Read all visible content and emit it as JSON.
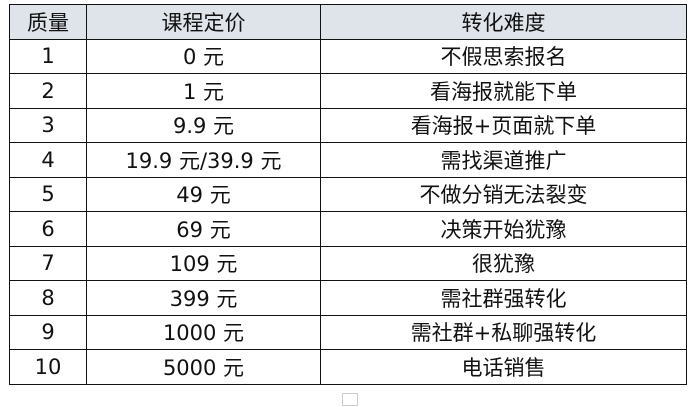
{
  "table": {
    "headers": [
      "质量",
      "课程定价",
      "转化难度"
    ],
    "rows": [
      [
        "1",
        "0 元",
        "不假思索报名"
      ],
      [
        "2",
        "1 元",
        "看海报就能下单"
      ],
      [
        "3",
        "9.9 元",
        "看海报+页面就下单"
      ],
      [
        "4",
        "19.9 元/39.9 元",
        "需找渠道推广"
      ],
      [
        "5",
        "49 元",
        "不做分销无法裂变"
      ],
      [
        "6",
        "69 元",
        "决策开始犹豫"
      ],
      [
        "7",
        "109 元",
        "很犹豫"
      ],
      [
        "8",
        "399 元",
        "需社群强转化"
      ],
      [
        "9",
        "1000 元",
        "需社群+私聊强转化"
      ],
      [
        "10",
        "5000 元",
        "电话销售"
      ]
    ]
  },
  "colors": {
    "header_bg": "#dfe3ea",
    "border": "#111111"
  }
}
